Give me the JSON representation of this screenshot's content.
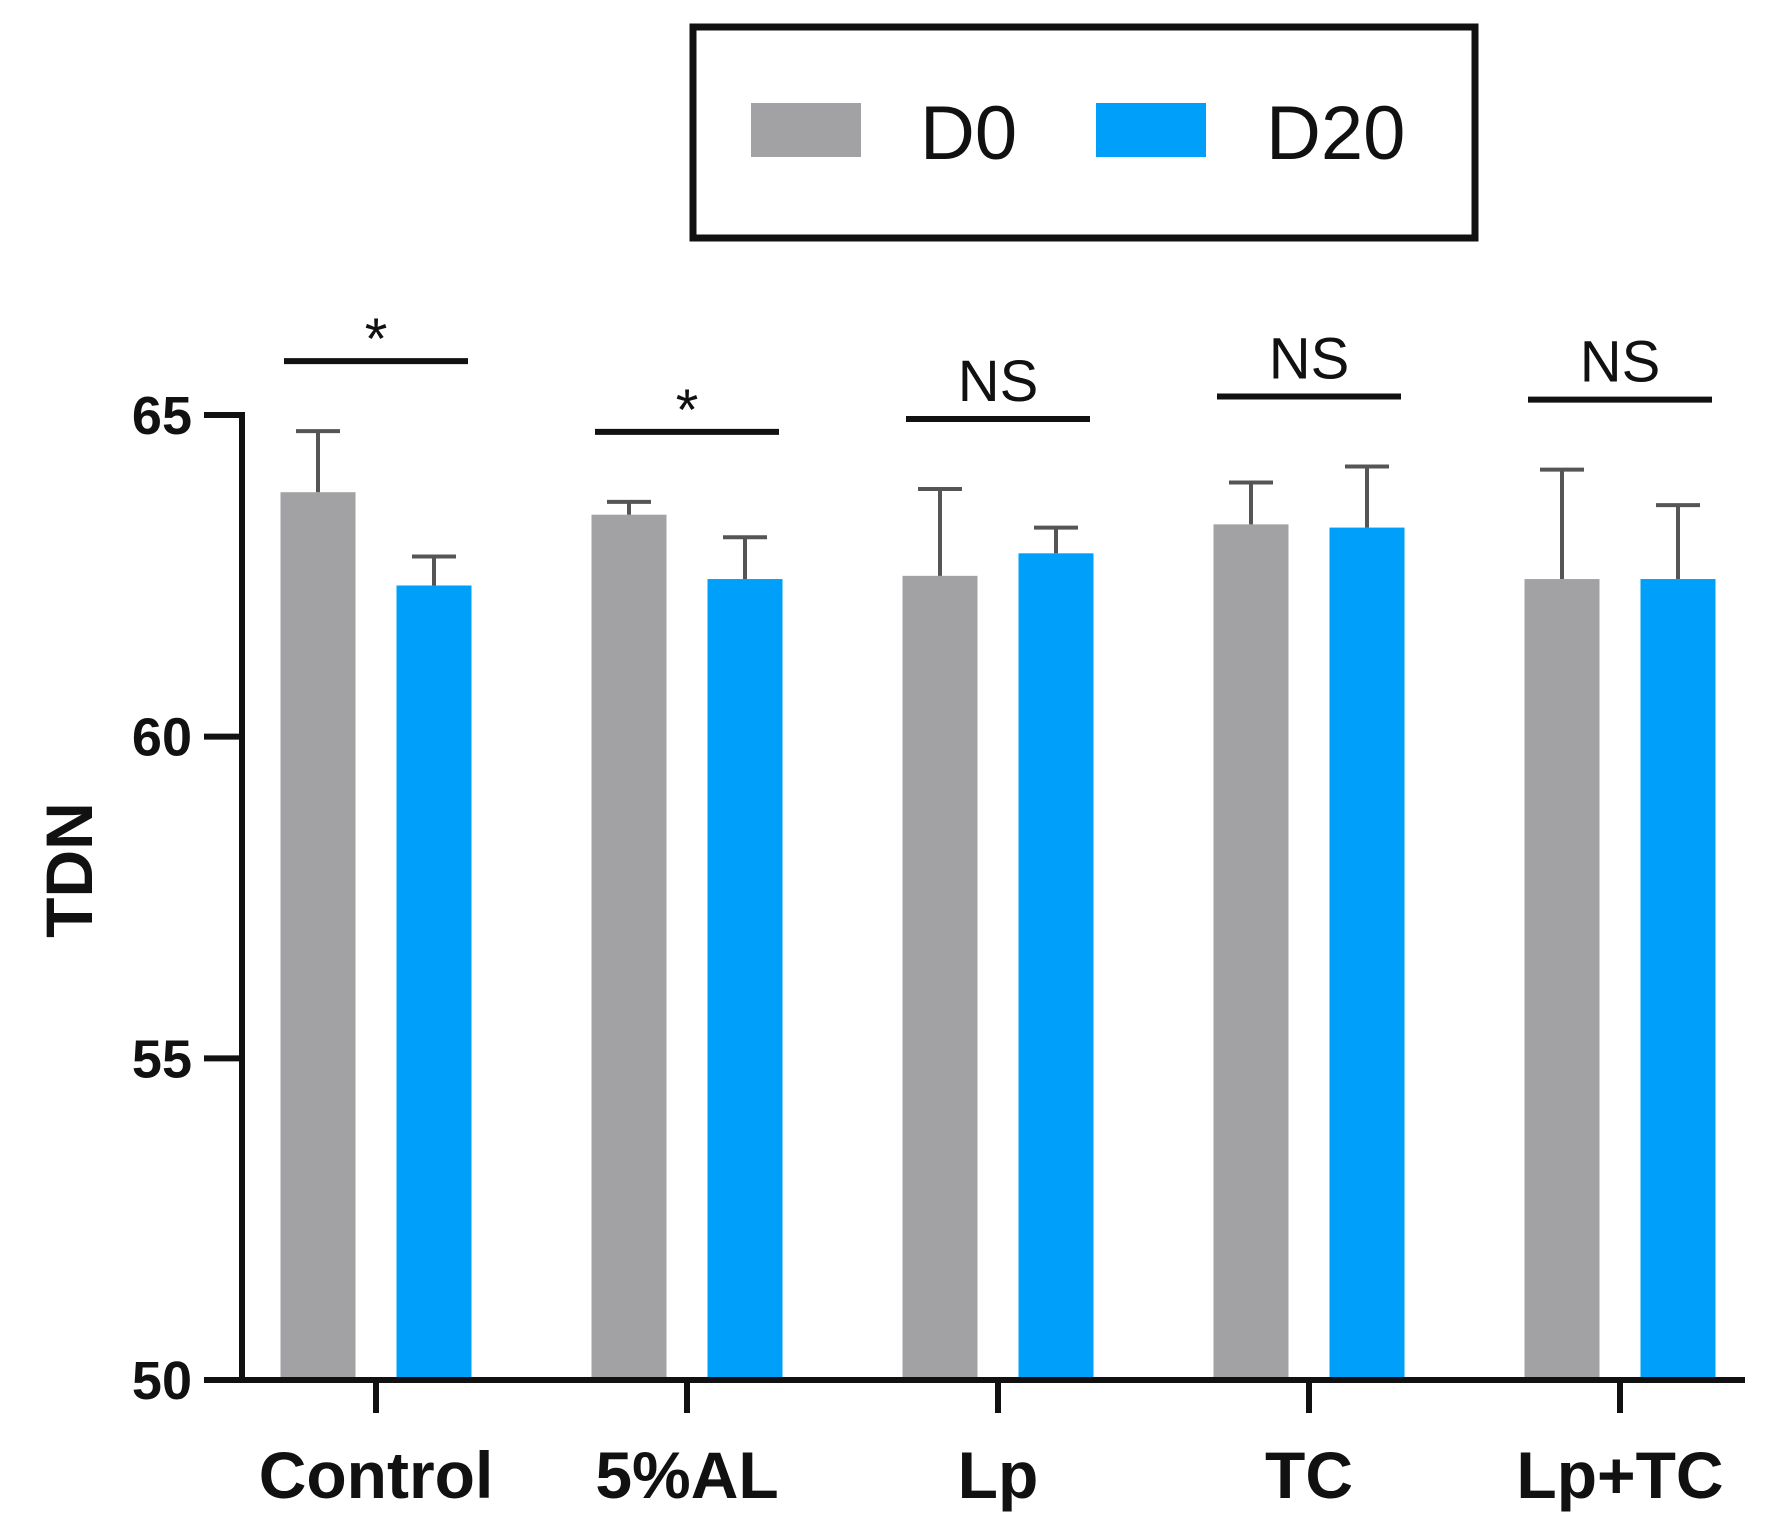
{
  "chart_data": {
    "type": "bar",
    "title": "",
    "xlabel": "",
    "ylabel": "TDN",
    "ylim": [
      50,
      65
    ],
    "yticks": [
      50,
      55,
      60,
      65
    ],
    "categories": [
      "Control",
      "5%AL",
      "Lp",
      "TC",
      "Lp+TC"
    ],
    "series": [
      {
        "name": "D0",
        "color": "#a2a2a5",
        "values": [
          63.8,
          63.45,
          62.5,
          63.3,
          62.45
        ],
        "errors": [
          0.95,
          0.2,
          1.35,
          0.65,
          1.7
        ]
      },
      {
        "name": "D20",
        "color": "#00a0fa",
        "values": [
          62.35,
          62.45,
          62.85,
          63.25,
          62.45
        ],
        "errors": [
          0.45,
          0.65,
          0.4,
          0.95,
          1.15
        ]
      }
    ],
    "significance": [
      "*",
      "*",
      "NS",
      "NS",
      "NS"
    ],
    "legend_position": "top-center",
    "grid": false
  }
}
